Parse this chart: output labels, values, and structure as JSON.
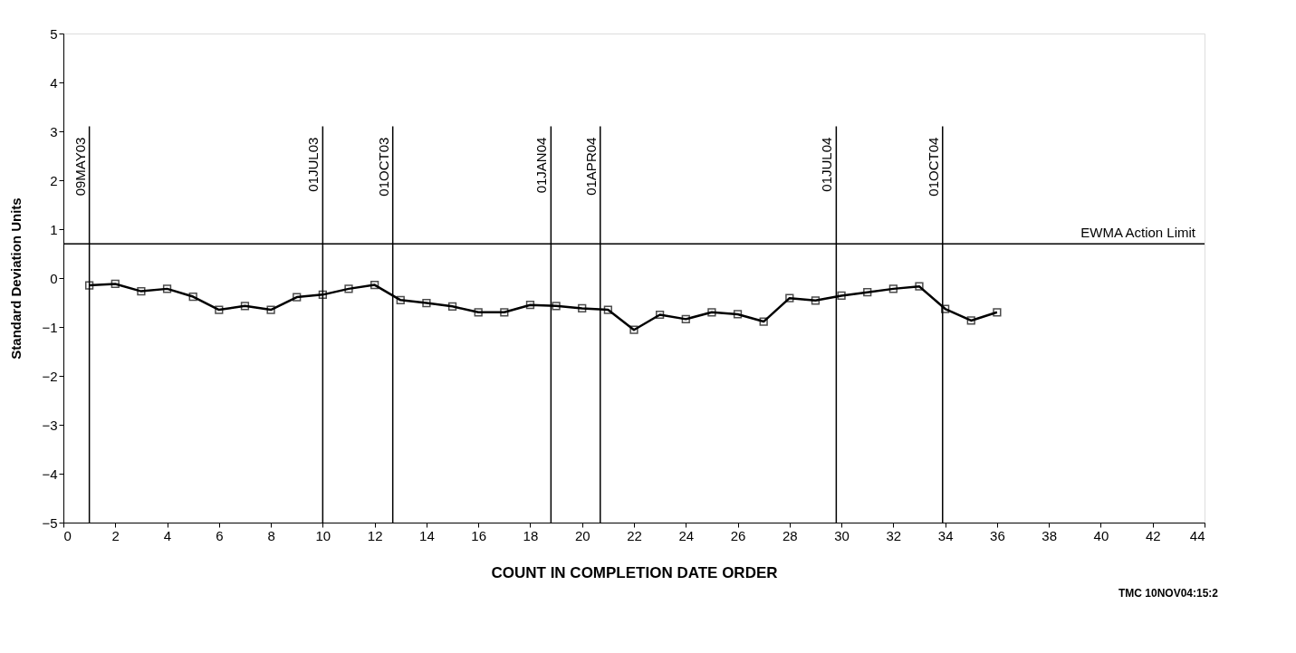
{
  "chart_data": {
    "type": "line",
    "xlabel": "COUNT IN COMPLETION DATE ORDER",
    "ylabel": "Standard Deviation Units",
    "x": [
      1,
      2,
      3,
      4,
      5,
      6,
      7,
      8,
      9,
      10,
      11,
      12,
      13,
      14,
      15,
      16,
      17,
      18,
      19,
      20,
      21,
      22,
      23,
      24,
      25,
      26,
      27,
      28,
      29,
      30,
      31,
      32,
      33,
      34,
      35,
      36
    ],
    "series": [
      {
        "color": "#000000",
        "values": [
          -0.15,
          -0.12,
          -0.27,
          -0.22,
          -0.38,
          -0.65,
          -0.57,
          -0.65,
          -0.39,
          -0.34,
          -0.22,
          -0.14,
          -0.45,
          -0.51,
          -0.58,
          -0.7,
          -0.7,
          -0.55,
          -0.57,
          -0.62,
          -0.65,
          -1.06,
          -0.75,
          -0.84,
          -0.7,
          -0.74,
          -0.89,
          -0.41,
          -0.46,
          -0.36,
          -0.29,
          -0.22,
          -0.17,
          -0.63,
          -0.87,
          -0.7
        ]
      }
    ],
    "xlim": [
      0,
      44
    ],
    "xticks": [
      0,
      2,
      4,
      6,
      8,
      10,
      12,
      14,
      16,
      18,
      20,
      22,
      24,
      26,
      28,
      30,
      32,
      34,
      36,
      38,
      40,
      42,
      44
    ],
    "ylim": [
      -5,
      5
    ],
    "yticks": [
      -5,
      -4,
      -3,
      -2,
      -1,
      0,
      1,
      2,
      3,
      4,
      5
    ],
    "ref_lines": [
      {
        "axis": "x",
        "value": 1,
        "label": "09MAY03"
      },
      {
        "axis": "x",
        "value": 10,
        "label": "01JUL03"
      },
      {
        "axis": "x",
        "value": 12.7,
        "label": "01OCT03"
      },
      {
        "axis": "x",
        "value": 18.8,
        "label": "01JAN04"
      },
      {
        "axis": "x",
        "value": 20.7,
        "label": "01APR04"
      },
      {
        "axis": "x",
        "value": 29.8,
        "label": "01JUL04"
      },
      {
        "axis": "x",
        "value": 33.9,
        "label": "01OCT04"
      },
      {
        "axis": "y",
        "value": 0.7,
        "label": "EWMA Action Limit"
      }
    ],
    "annotations": [
      "TMC   10NOV04:15:2"
    ],
    "marker": "square",
    "line_style": "solid",
    "grid": false
  }
}
